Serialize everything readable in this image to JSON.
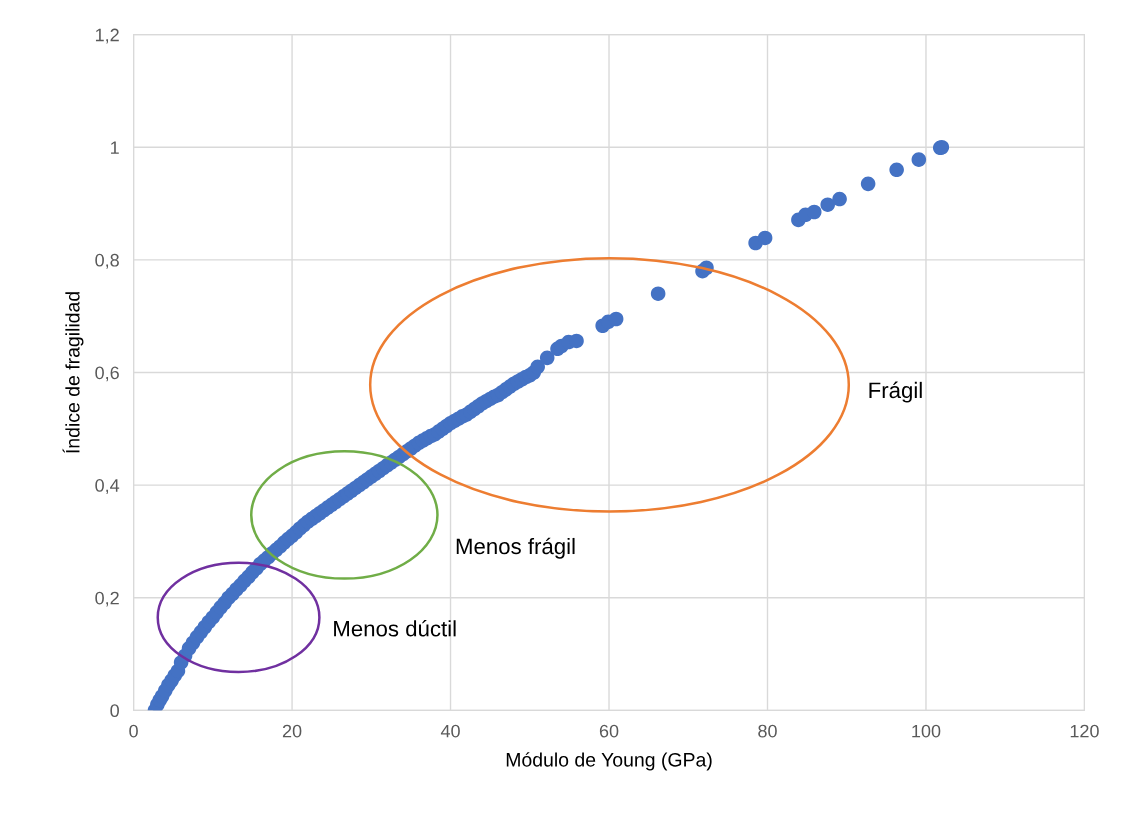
{
  "chart_data": {
    "type": "scatter",
    "xlabel": "Módulo de Young (GPa)",
    "ylabel": "Índice de fragilidad",
    "xlim": [
      0,
      120
    ],
    "xticks": [
      0,
      20,
      40,
      60,
      80,
      100,
      120
    ],
    "ylim": [
      0,
      1.2
    ],
    "yticks": [
      {
        "value": 0,
        "label": "0"
      },
      {
        "value": 0.2,
        "label": "0,2"
      },
      {
        "value": 0.4,
        "label": "0,4"
      },
      {
        "value": 0.6,
        "label": "0,6"
      },
      {
        "value": 0.8,
        "label": "0,8"
      },
      {
        "value": 1,
        "label": "1"
      },
      {
        "value": 1.2,
        "label": "1,2"
      }
    ],
    "grid": true,
    "legend": false,
    "marker": "circle",
    "series": [
      {
        "color": "#4472c4",
        "x": [
          2.7,
          3.0,
          3.3,
          3.6,
          4.0,
          4.4,
          4.8,
          5.2,
          5.6,
          6.0,
          6.5,
          7.0,
          7.5,
          8.0,
          8.5,
          9.0,
          9.5,
          10,
          10.5,
          11,
          11.5,
          12,
          12.5,
          13,
          13.5,
          14,
          14.5,
          15,
          15.5,
          16,
          16.5,
          17,
          17.5,
          18,
          18.5,
          19,
          19.5,
          20,
          20.5,
          21,
          21.5,
          22,
          22.5,
          23,
          23.5,
          24,
          24.5,
          25,
          25.5,
          26,
          26.5,
          27,
          27.5,
          28,
          28.5,
          29,
          29.5,
          30,
          30.5,
          31,
          31.5,
          32,
          32.5,
          33,
          33.5,
          34,
          34.5,
          35,
          35.5,
          36,
          36.5,
          37,
          37.5,
          38,
          38.5,
          39,
          39.5,
          40,
          40.5,
          41,
          41.5,
          42,
          42.5,
          43,
          43.5,
          44,
          44.5,
          45,
          45.5,
          46,
          46.5,
          47,
          47.5,
          48,
          48.5,
          49,
          49.5,
          50,
          50.5,
          51,
          52.2,
          53.5,
          54.0,
          54.9,
          55.9,
          59.2,
          59.9,
          60.9,
          66.2,
          71.8,
          72.3,
          78.5,
          79.7,
          83.9,
          84.8,
          85.9,
          87.6,
          89.1,
          92.7,
          96.3,
          99.1,
          101.8,
          102.0
        ],
        "values": [
          0.0,
          0.01,
          0.018,
          0.025,
          0.035,
          0.045,
          0.053,
          0.062,
          0.07,
          0.085,
          0.097,
          0.11,
          0.12,
          0.13,
          0.139,
          0.148,
          0.157,
          0.165,
          0.174,
          0.183,
          0.191,
          0.2,
          0.207,
          0.215,
          0.222,
          0.23,
          0.237,
          0.245,
          0.252,
          0.26,
          0.266,
          0.272,
          0.279,
          0.285,
          0.291,
          0.298,
          0.304,
          0.31,
          0.316,
          0.323,
          0.329,
          0.335,
          0.34,
          0.345,
          0.35,
          0.355,
          0.36,
          0.365,
          0.37,
          0.375,
          0.38,
          0.385,
          0.39,
          0.395,
          0.4,
          0.405,
          0.41,
          0.415,
          0.42,
          0.425,
          0.43,
          0.435,
          0.44,
          0.445,
          0.45,
          0.455,
          0.46,
          0.465,
          0.47,
          0.475,
          0.479,
          0.483,
          0.487,
          0.49,
          0.495,
          0.5,
          0.505,
          0.51,
          0.514,
          0.518,
          0.522,
          0.525,
          0.53,
          0.535,
          0.54,
          0.545,
          0.549,
          0.553,
          0.557,
          0.56,
          0.565,
          0.57,
          0.575,
          0.58,
          0.584,
          0.588,
          0.592,
          0.595,
          0.6,
          0.61,
          0.626,
          0.642,
          0.647,
          0.654,
          0.656,
          0.683,
          0.69,
          0.695,
          0.74,
          0.78,
          0.786,
          0.83,
          0.839,
          0.871,
          0.88,
          0.885,
          0.898,
          0.908,
          0.935,
          0.96,
          0.978,
          0.999,
          1.0
        ]
      }
    ],
    "annotations": [
      "Frágil",
      "Menos frágil",
      "Menos dúctil"
    ]
  }
}
